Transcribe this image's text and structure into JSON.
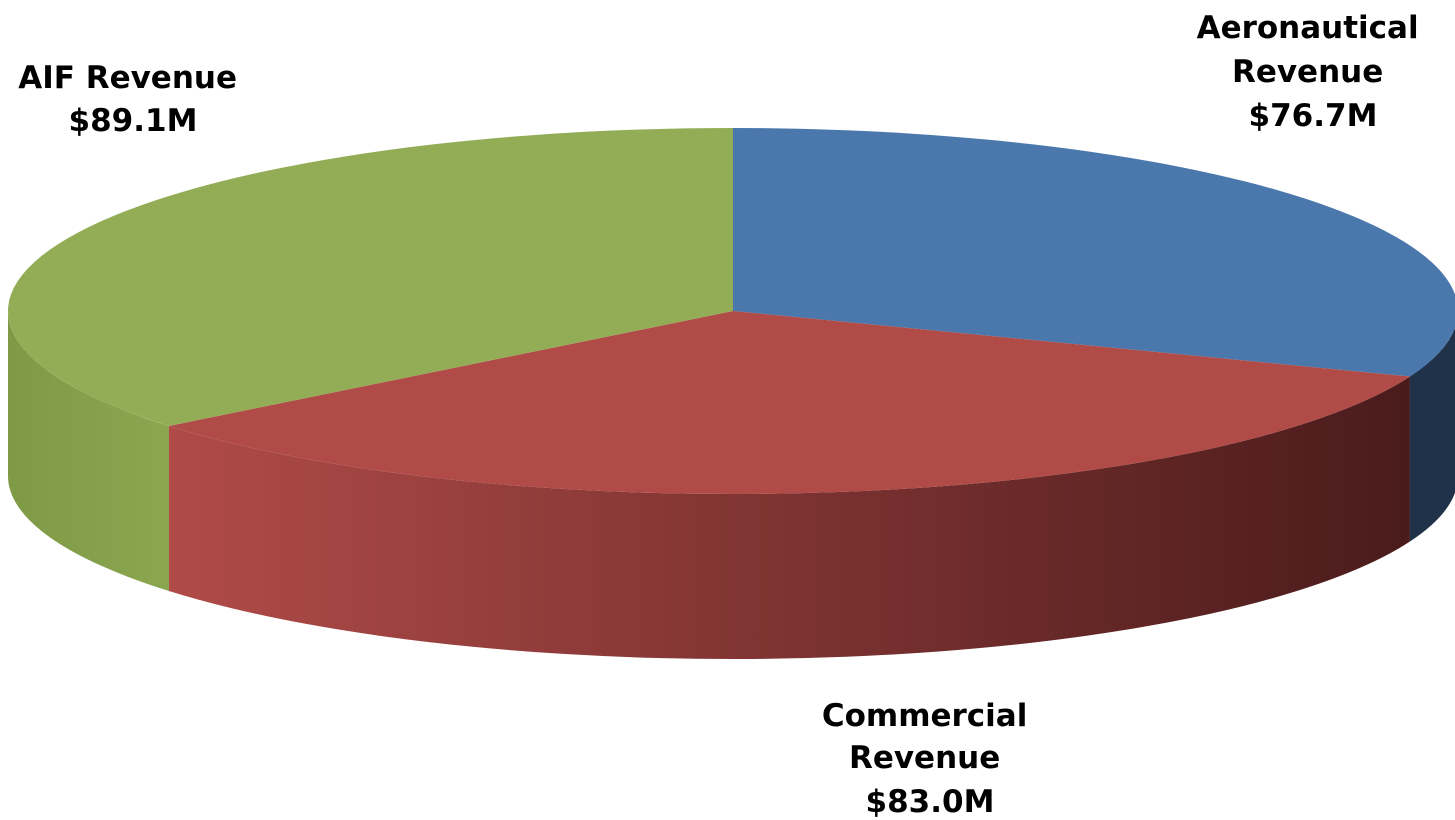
{
  "chart_data": {
    "type": "pie",
    "style": "3d",
    "units": "$M",
    "slices": [
      {
        "name": "Aeronautical Revenue",
        "value": 76.7,
        "label_lines": [
          "Aeronautical",
          "Revenue",
          "$76.7M"
        ],
        "label_position": "top-right",
        "color": "#4a78ad",
        "side_dark": "#1f3249"
      },
      {
        "name": "Commercial Revenue",
        "value": 83.0,
        "label_lines": [
          "Commercial",
          "Revenue",
          "$83.0M"
        ],
        "label_position": "bottom",
        "color": "#b14b48",
        "side_light": "#b04b48",
        "side_dark": "#4a1b1b"
      },
      {
        "name": "AIF Revenue",
        "value": 89.1,
        "label_lines": [
          "AIF Revenue",
          "$89.1M"
        ],
        "label_position": "top-left",
        "color": "#93ad57",
        "side_light": "#8aa64f",
        "side_dark": "#7e9a46"
      }
    ]
  }
}
